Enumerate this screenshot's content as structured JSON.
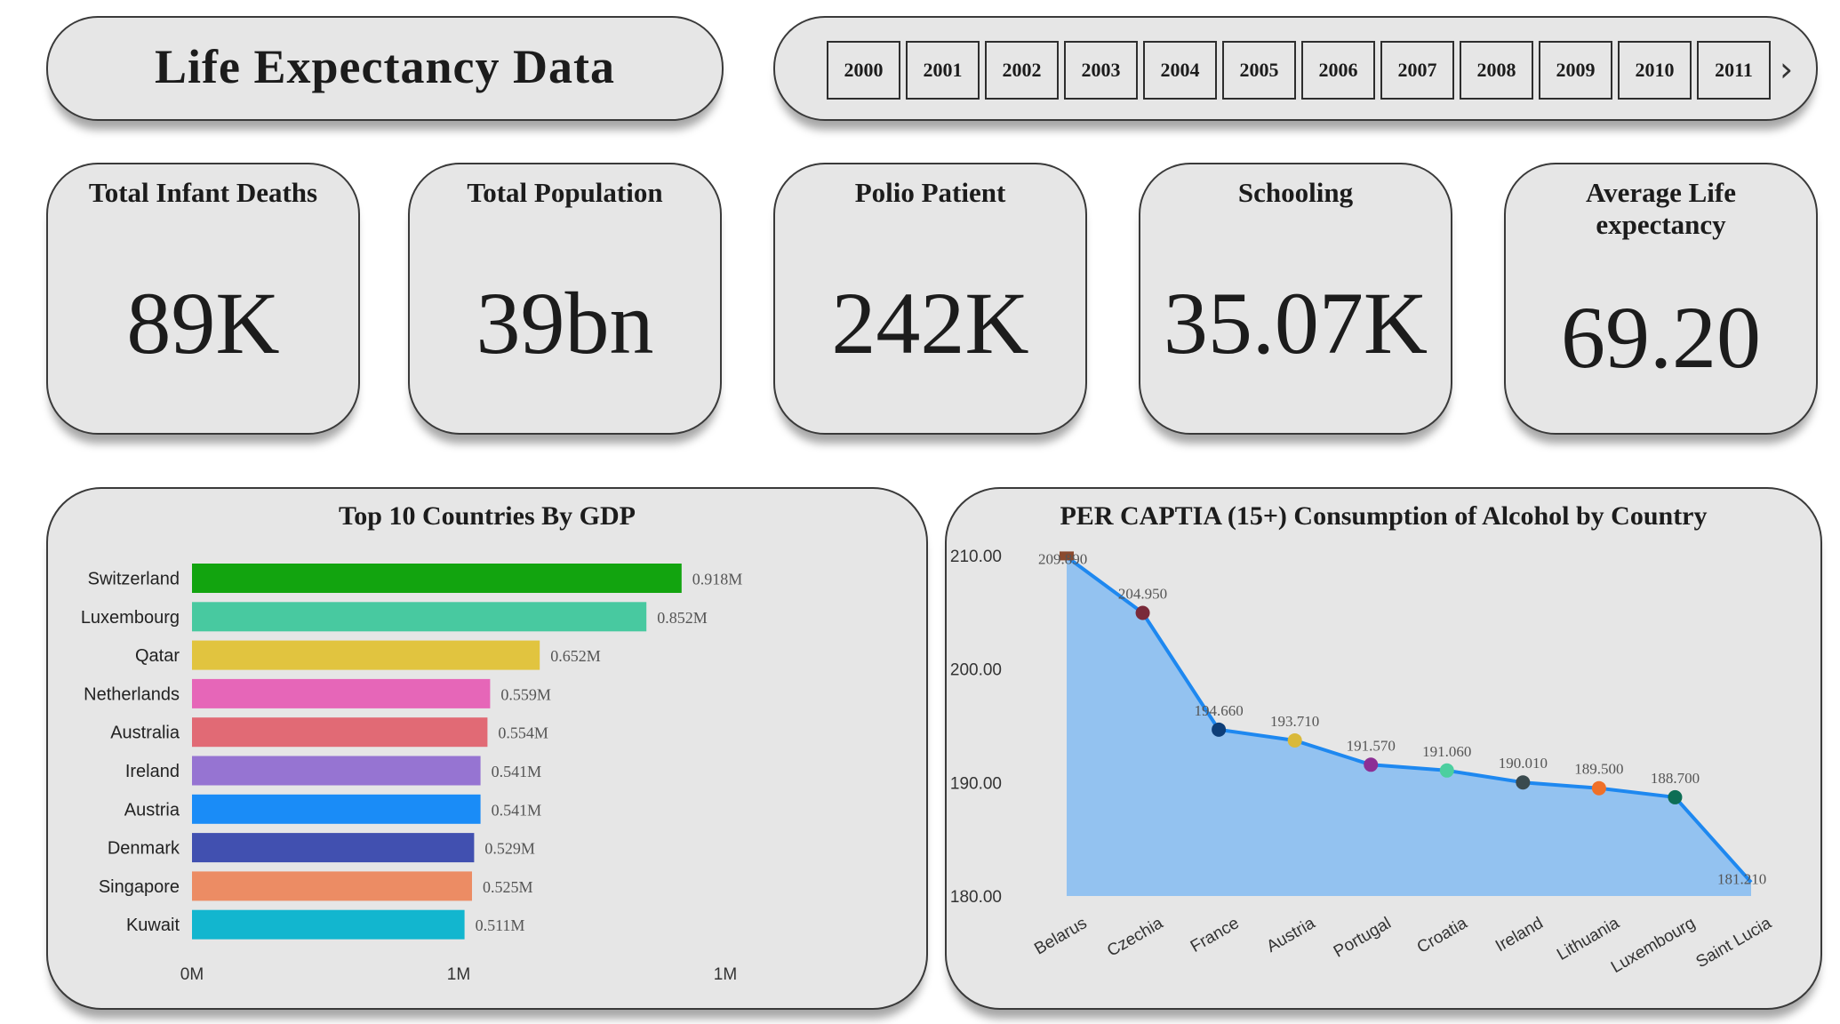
{
  "header": {
    "title": "Life Expectancy Data"
  },
  "year_slicer": {
    "years": [
      "2000",
      "2001",
      "2002",
      "2003",
      "2004",
      "2005",
      "2006",
      "2007",
      "2008",
      "2009",
      "2010",
      "2011"
    ],
    "next_icon": "chevron-right-icon"
  },
  "kpis": [
    {
      "label": "Total Infant Deaths",
      "value": "89K"
    },
    {
      "label": "Total Population",
      "value": "39bn"
    },
    {
      "label": "Polio Patient",
      "value": "242K"
    },
    {
      "label": "Schooling",
      "value": "35.07K"
    },
    {
      "label": "Average Life expectancy",
      "value": "69.20"
    }
  ],
  "chart_data": [
    {
      "type": "bar",
      "orientation": "horizontal",
      "title": "Top 10 Countries By GDP",
      "categories": [
        "Switzerland",
        "Luxembourg",
        "Qatar",
        "Netherlands",
        "Australia",
        "Ireland",
        "Austria",
        "Denmark",
        "Singapore",
        "Kuwait"
      ],
      "values": [
        0.918,
        0.852,
        0.652,
        0.559,
        0.554,
        0.541,
        0.541,
        0.529,
        0.525,
        0.511
      ],
      "value_labels": [
        "0.918M",
        "0.852M",
        "0.652M",
        "0.559M",
        "0.554M",
        "0.541M",
        "0.541M",
        "0.529M",
        "0.525M",
        "0.511M"
      ],
      "colors": [
        "#12a40f",
        "#48c9a0",
        "#e1c43f",
        "#e666b8",
        "#e16a75",
        "#9674d2",
        "#1a8cf7",
        "#4150b0",
        "#ec8c64",
        "#12b6cf"
      ],
      "xticks": [
        "0M",
        "1M",
        "1M"
      ],
      "xlim": [
        0,
        1
      ]
    },
    {
      "type": "area",
      "title": "PER CAPTIA (15+) Consumption of Alcohol by Country",
      "categories": [
        "Belarus",
        "Czechia",
        "France",
        "Austria",
        "Portugal",
        "Croatia",
        "Ireland",
        "Lithuania",
        "Luxembourg",
        "Saint Lucia"
      ],
      "values": [
        209.89,
        204.95,
        194.66,
        193.71,
        191.57,
        191.06,
        190.01,
        189.5,
        188.7,
        181.21
      ],
      "value_labels": [
        "209.890",
        "204.950",
        "194.660",
        "193.710",
        "191.570",
        "191.060",
        "190.010",
        "189.500",
        "188.700",
        "181.210"
      ],
      "marker_colors": [
        "#8b4a2e",
        "#7a2a3a",
        "#0e3e78",
        "#d9b93a",
        "#8c2f95",
        "#4ccf9f",
        "#3a4a4e",
        "#f07028",
        "#0e6e55",
        ""
      ],
      "line_color": "#1e88f0",
      "fill_color": "#93c2f0",
      "yticks": [
        "210.00",
        "200.00",
        "190.00",
        "180.00"
      ],
      "ylim": [
        180,
        210
      ]
    }
  ]
}
